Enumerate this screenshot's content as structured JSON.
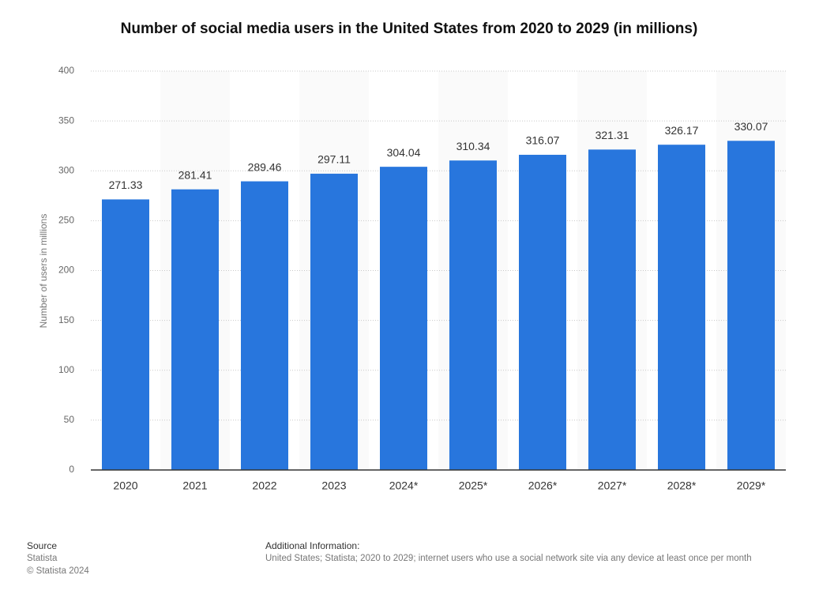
{
  "chart_data": {
    "type": "bar",
    "title": "Number of social media users in the United States from 2020 to 2029 (in millions)",
    "y_label": "Number of users in millions",
    "categories": [
      "2020",
      "2021",
      "2022",
      "2023",
      "2024*",
      "2025*",
      "2026*",
      "2027*",
      "2028*",
      "2029*"
    ],
    "values": [
      271.33,
      281.41,
      289.46,
      297.11,
      304.04,
      310.34,
      316.07,
      321.31,
      326.17,
      330.07
    ],
    "color": "#2876dd",
    "ylim": [
      0,
      400
    ],
    "yticks": [
      0,
      50,
      100,
      150,
      200,
      250,
      300,
      350,
      400
    ],
    "grid": true
  },
  "footer": {
    "source_heading": "Source",
    "source": "Statista",
    "copyright": "© Statista 2024",
    "info_heading": "Additional Information:",
    "info": "United States; Statista; 2020 to 2029; internet users who use a social network site via any device at least once per month"
  }
}
